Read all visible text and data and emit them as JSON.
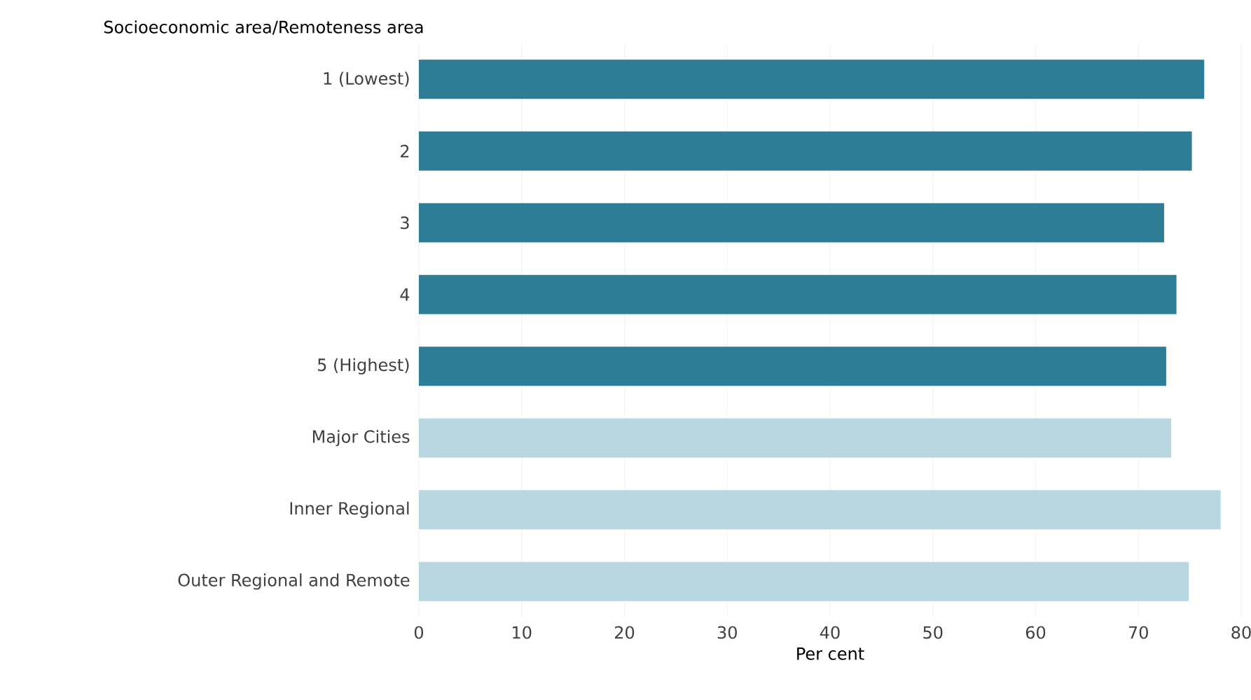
{
  "chart_data": {
    "type": "bar",
    "orientation": "horizontal",
    "ylabel": "Socioeconomic area/Remoteness area",
    "xlabel": "Per cent",
    "categories": [
      "1 (Lowest)",
      "2",
      "3",
      "4",
      "5 (Highest)",
      "Major Cities",
      "Inner Regional",
      "Outer Regional and Remote"
    ],
    "values": [
      76.4,
      75.2,
      72.5,
      73.7,
      72.7,
      73.2,
      78.0,
      74.9
    ],
    "colors": [
      "#2e7d96",
      "#2e7d96",
      "#2e7d96",
      "#2e7d96",
      "#2e7d96",
      "#b8d7e0",
      "#b8d7e0",
      "#b8d7e0"
    ],
    "xlim": [
      0,
      80
    ],
    "xticks": [
      0,
      10,
      20,
      30,
      40,
      50,
      60,
      70,
      80
    ],
    "grid": "x"
  }
}
